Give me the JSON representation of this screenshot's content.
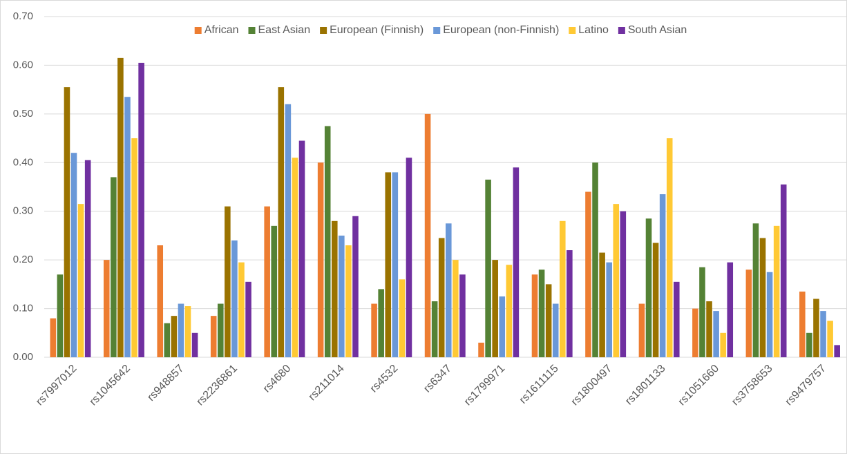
{
  "chart_data": {
    "type": "bar",
    "categories": [
      "rs7997012",
      "rs1045642",
      "rs948857",
      "rs2236861",
      "rs4680",
      "rs211014",
      "rs4532",
      "rs6347",
      "rs1799971",
      "rs1611115",
      "rs1800497",
      "rs1801133",
      "rs1051660",
      "rs3758653",
      "rs9479757"
    ],
    "series": [
      {
        "name": "African",
        "color": "#ed7d31",
        "values": [
          0.08,
          0.2,
          0.23,
          0.085,
          0.31,
          0.4,
          0.11,
          0.5,
          0.03,
          0.17,
          0.34,
          0.11,
          0.1,
          0.18,
          0.135
        ]
      },
      {
        "name": "East Asian",
        "color": "#548235",
        "values": [
          0.17,
          0.37,
          0.07,
          0.11,
          0.27,
          0.475,
          0.14,
          0.115,
          0.365,
          0.18,
          0.4,
          0.285,
          0.185,
          0.275,
          0.05
        ]
      },
      {
        "name": "European (Finnish)",
        "color": "#9a7300",
        "values": [
          0.555,
          0.615,
          0.085,
          0.31,
          0.555,
          0.28,
          0.38,
          0.245,
          0.2,
          0.15,
          0.215,
          0.235,
          0.115,
          0.245,
          0.12
        ]
      },
      {
        "name": "European (non-Finnish)",
        "color": "#6a98d8",
        "values": [
          0.42,
          0.535,
          0.11,
          0.24,
          0.52,
          0.25,
          0.38,
          0.275,
          0.125,
          0.11,
          0.195,
          0.335,
          0.095,
          0.175,
          0.095
        ]
      },
      {
        "name": "Latino",
        "color": "#ffc934",
        "values": [
          0.315,
          0.45,
          0.105,
          0.195,
          0.41,
          0.23,
          0.16,
          0.2,
          0.19,
          0.28,
          0.315,
          0.45,
          0.05,
          0.27,
          0.075
        ]
      },
      {
        "name": "South Asian",
        "color": "#7030a0",
        "values": [
          0.405,
          0.605,
          0.05,
          0.155,
          0.445,
          0.29,
          0.41,
          0.17,
          0.39,
          0.22,
          0.3,
          0.155,
          0.195,
          0.355,
          0.025
        ]
      }
    ],
    "ylim": [
      0,
      0.7
    ],
    "yticks": [
      {
        "value": 0,
        "label": "0.00"
      },
      {
        "value": 0.1,
        "label": "0.10"
      },
      {
        "value": 0.2,
        "label": "0.20"
      },
      {
        "value": 0.3,
        "label": "0.30"
      },
      {
        "value": 0.4,
        "label": "0.40"
      },
      {
        "value": 0.5,
        "label": "0.50"
      },
      {
        "value": 0.6,
        "label": "0.60"
      },
      {
        "value": 0.7,
        "label": "0.70"
      }
    ],
    "grid": true,
    "legend": "top"
  }
}
